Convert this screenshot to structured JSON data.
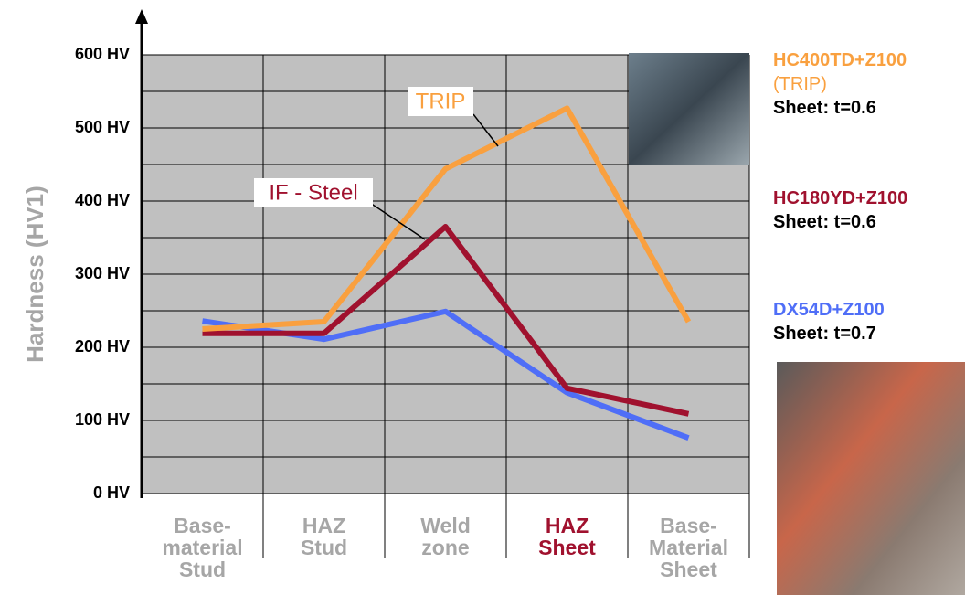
{
  "chart_data": {
    "type": "line",
    "y_label": "Hardness  (HV1)",
    "categories": [
      "Base-\nmaterial\nStud",
      "HAZ\nStud",
      "Weld\nzone",
      "HAZ\nSheet",
      "Base-\nMaterial\nSheet"
    ],
    "category_colors": [
      "#a6a6a6",
      "#a6a6a6",
      "#a6a6a6",
      "#a0112e",
      "#a6a6a6"
    ],
    "series": [
      {
        "name": "HC400TD+Z100",
        "subname": "(TRIP)",
        "sheet": "Sheet: t=0.6",
        "annotation": "TRIP",
        "color": "#f9a03f",
        "values": [
          225,
          235,
          444,
          527,
          235
        ]
      },
      {
        "name": "HC180YD+Z100",
        "sheet": "Sheet: t=0.6",
        "annotation": "IF - Steel",
        "color": "#a0112e",
        "values": [
          219,
          219,
          365,
          144,
          109
        ]
      },
      {
        "name": "DX54D+Z100",
        "sheet": "Sheet: t=0.7",
        "color": "#4f6ef7",
        "values": [
          236,
          211,
          249,
          138,
          76
        ]
      }
    ],
    "ylim": [
      0,
      600
    ],
    "yticks": [
      {
        "value": 0,
        "label": "0 HV"
      },
      {
        "value": 100,
        "label": "100 HV"
      },
      {
        "value": 200,
        "label": "200 HV"
      },
      {
        "value": 300,
        "label": "300 HV"
      },
      {
        "value": 400,
        "label": "400 HV"
      },
      {
        "value": 500,
        "label": "500 HV"
      },
      {
        "value": 600,
        "label": "600 HV"
      }
    ],
    "minor_yticks": [
      50,
      150,
      250,
      350,
      450,
      550
    ],
    "grid": true
  }
}
